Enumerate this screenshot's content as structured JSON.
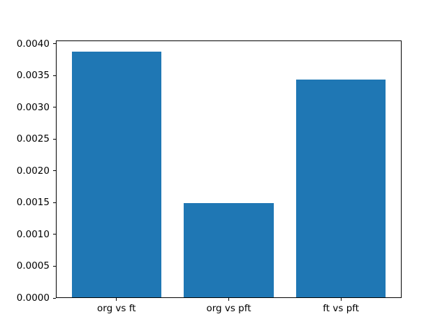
{
  "chart_data": {
    "type": "bar",
    "title": "",
    "xlabel": "",
    "ylabel": "",
    "categories": [
      "org vs ft",
      "org vs pft",
      "ft vs pft"
    ],
    "values": [
      0.00387,
      0.00149,
      0.00343
    ],
    "bar_color": "#1f77b4",
    "bar_width": 0.8,
    "ylim": [
      0,
      0.00405
    ],
    "xlim": [
      -0.54,
      2.54
    ],
    "yticks": [
      0.0,
      0.0005,
      0.001,
      0.0015,
      0.002,
      0.0025,
      0.003,
      0.0035,
      0.004
    ],
    "ytick_labels": [
      "0.0000",
      "0.0005",
      "0.0010",
      "0.0015",
      "0.0020",
      "0.0025",
      "0.0030",
      "0.0035",
      "0.0040"
    ],
    "grid": false,
    "legend": "none",
    "background_color": "#ffffff",
    "spine_color": "#000000"
  }
}
